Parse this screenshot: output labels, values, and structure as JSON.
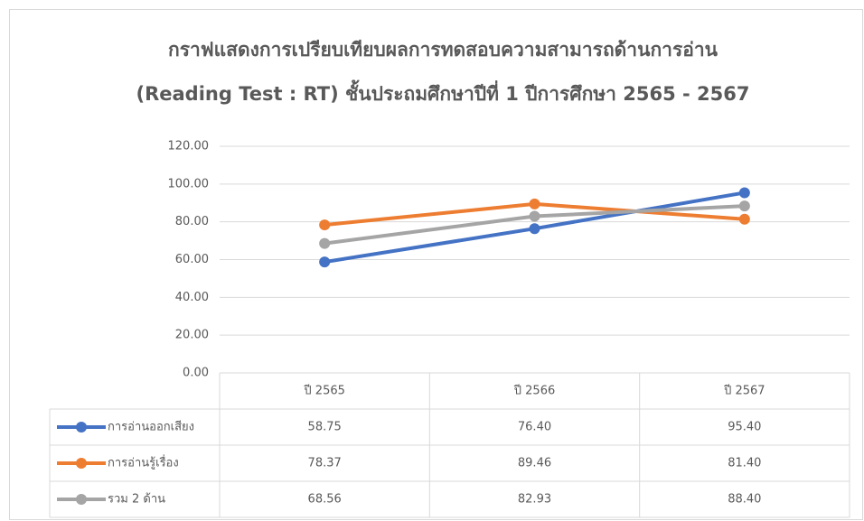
{
  "chart_data": {
    "type": "line",
    "title": [
      "กราฟแสดงการเปรียบเทียบผลการทดสอบความสามารถด้านการอ่าน",
      "(Reading Test : RT) ชั้นประถมศึกษาปีที่ 1 ปีการศึกษา 2565 - 2567"
    ],
    "categories": [
      "ปี 2565",
      "ปี 2566",
      "ปี 2567"
    ],
    "series": [
      {
        "name": "การอ่านออกเสียง",
        "color": "#4472c4",
        "values": [
          58.75,
          76.4,
          95.4
        ],
        "value_labels": [
          "58.75",
          "76.40",
          "95.40"
        ]
      },
      {
        "name": "การอ่านรู้เรื่อง",
        "color": "#ed7d31",
        "values": [
          78.37,
          89.46,
          81.4
        ],
        "value_labels": [
          "78.37",
          "89.46",
          "81.40"
        ]
      },
      {
        "name": "รวม 2 ด้าน",
        "color": "#a5a5a5",
        "values": [
          68.56,
          82.93,
          88.4
        ],
        "value_labels": [
          "68.56",
          "82.93",
          "88.40"
        ]
      }
    ],
    "ylim": [
      0,
      120
    ],
    "yticks": [
      {
        "value": 0,
        "label": "0.00"
      },
      {
        "value": 20,
        "label": "20.00"
      },
      {
        "value": 40,
        "label": "40.00"
      },
      {
        "value": 60,
        "label": "60.00"
      },
      {
        "value": 80,
        "label": "80.00"
      },
      {
        "value": 100,
        "label": "100.00"
      },
      {
        "value": 120,
        "label": "120.00"
      }
    ],
    "grid": true
  }
}
